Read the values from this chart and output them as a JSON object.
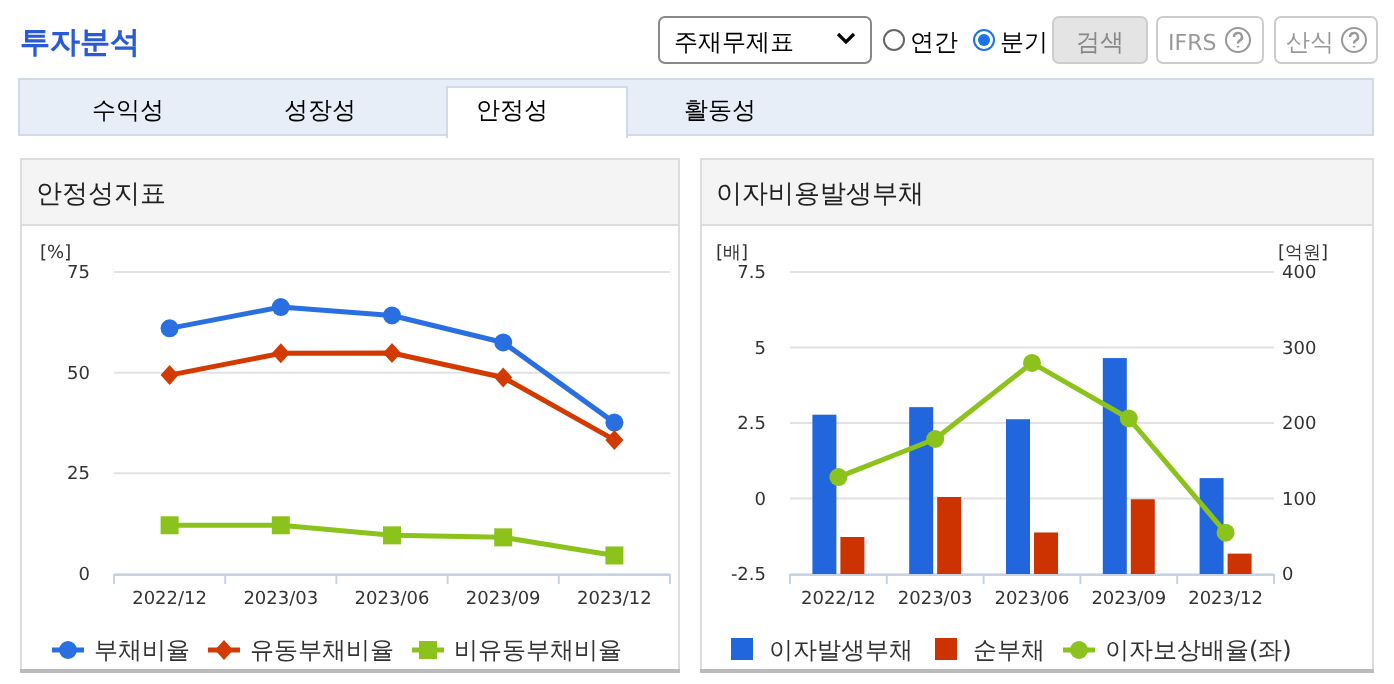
{
  "chart_data": [
    {
      "type": "other",
      "title": "투자분석",
      "annotations": [
        "주재무제표",
        "연간",
        "분기",
        "검색",
        "IFRS",
        "산식",
        "수익성",
        "성장성",
        "안정성",
        "활동성"
      ]
    },
    {
      "type": "line",
      "title": "안정성지표",
      "ylabel": "[%]",
      "categories": [
        "2022/12",
        "2023/03",
        "2023/06",
        "2023/09",
        "2023/12"
      ],
      "ylim": [
        0,
        75
      ],
      "yticks": [
        0,
        25,
        50,
        75
      ],
      "grid": "y",
      "legend": "bottom",
      "series": [
        {
          "name": "부채비율",
          "color": "#2a6fe0",
          "marker": "circle",
          "values": [
            61.0,
            66.3,
            64.2,
            57.5,
            37.6
          ]
        },
        {
          "name": "유동부채비율",
          "color": "#d23a00",
          "marker": "diamond",
          "values": [
            49.4,
            54.8,
            54.9,
            48.8,
            33.3
          ]
        },
        {
          "name": "비유동부채비율",
          "color": "#8cc21c",
          "marker": "square",
          "values": [
            12.1,
            12.1,
            9.6,
            9.1,
            4.6
          ]
        }
      ]
    },
    {
      "type": "bar",
      "title": "이자비용발생부채",
      "ylabel": "[배]",
      "y2label": "[억원]",
      "categories": [
        "2022/12",
        "2023/03",
        "2023/06",
        "2023/09",
        "2023/12"
      ],
      "ylim": [
        -2.5,
        7.5
      ],
      "yticks": [
        -2.5,
        0,
        2.5,
        5,
        7.5
      ],
      "y2lim": [
        0,
        400
      ],
      "y2ticks": [
        0,
        100,
        200,
        300,
        400
      ],
      "grid": "y",
      "legend": "bottom",
      "series": [
        {
          "name": "이자발생부채",
          "color": "#2266dd",
          "axis": "y2",
          "values": [
            211,
            221,
            205,
            286,
            127
          ]
        },
        {
          "name": "순부채",
          "color": "#cc3300",
          "axis": "y2",
          "values": [
            49,
            102,
            55,
            99,
            27
          ]
        },
        {
          "name": "이자보상배율(좌)",
          "type": "line",
          "color": "#8cc21c",
          "marker": "circle",
          "values": [
            0.71,
            1.97,
            4.49,
            2.65,
            -1.13
          ]
        }
      ]
    }
  ]
}
